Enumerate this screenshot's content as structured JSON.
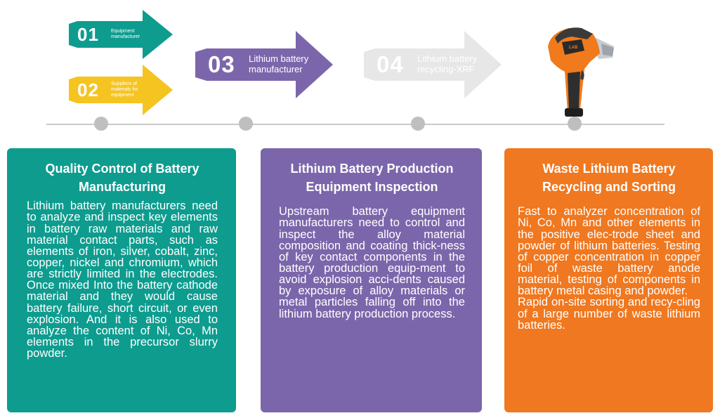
{
  "steps": [
    {
      "number": "01",
      "label": "Equipment manufacturer",
      "color": "#0e9c8f"
    },
    {
      "number": "02",
      "label": "Suppliers of materials for equipment",
      "color": "#f5c421"
    },
    {
      "number": "03",
      "label": "Lithium battery manufacturer",
      "color": "#7b66ab"
    },
    {
      "number": "04",
      "label": "Lithium battery recycling-XRF",
      "color": "#e7e7e7"
    }
  ],
  "device": {
    "icon": "xrf-analyzer-icon",
    "brand": "LAB"
  },
  "cards": [
    {
      "title": "Quality Control of Battery Manufacturing",
      "body": "Lithium battery manufacturers need to analyze and inspect key elements in battery raw materials and raw material contact parts, such as elements of iron, silver, cobalt, zinc, copper, nickel and chromium, which are strictly limited in the electrodes. Once mixed Into the battery cathode material and they would cause battery failure, short circuit, or even explosion. And it is also used to analyze the content of Ni, Co, Mn elements in the precursor slurry powder.",
      "color": "#0e9c8f"
    },
    {
      "title": "Lithium Battery Production Equipment Inspection",
      "body": "Upstream battery equipment manufacturers need to control and inspect the alloy material composition and coating thick-ness of key contact components in the battery production equip-ment to avoid explosion acci-dents caused by exposure of alloy materials or metal particles falling off into the lithium battery production process.",
      "color": "#7b66ab"
    },
    {
      "title": "Waste Lithium Battery Recycling and Sorting",
      "body": "Fast to analyzer concentration of Ni, Co, Mn and other elements in the positive elec-trode sheet and powder of lithium batteries. Testing of copper concentration in copper foil of waste battery anode material, testing of components in battery metal casing and powder.",
      "body2": "Rapid on-site sorting and recy-cling of a large number of waste lithium batteries.",
      "color": "#ef7820"
    }
  ]
}
